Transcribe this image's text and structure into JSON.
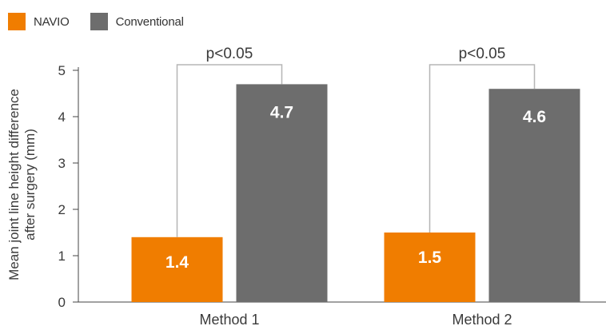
{
  "chart_data": {
    "type": "bar",
    "categories": [
      "Method 1",
      "Method 2"
    ],
    "series": [
      {
        "name": "NAVIO",
        "values": [
          1.4,
          1.5
        ],
        "color": "#f07d00"
      },
      {
        "name": "Conventional",
        "values": [
          4.7,
          4.6
        ],
        "color": "#6d6d6d"
      }
    ],
    "ylabel": [
      "Mean joint line height difference",
      "after surgery (mm)"
    ],
    "xlabel": "",
    "ylim": [
      0,
      5
    ],
    "yticks": [
      0,
      1,
      2,
      3,
      4,
      5
    ],
    "legend_position": "top-left",
    "grid": false,
    "annotations": [
      {
        "category": "Method 1",
        "text": "p<0.05"
      },
      {
        "category": "Method 2",
        "text": "p<0.05"
      }
    ],
    "value_labels": [
      [
        "1.4",
        "1.5"
      ],
      [
        "4.7",
        "4.6"
      ]
    ]
  }
}
